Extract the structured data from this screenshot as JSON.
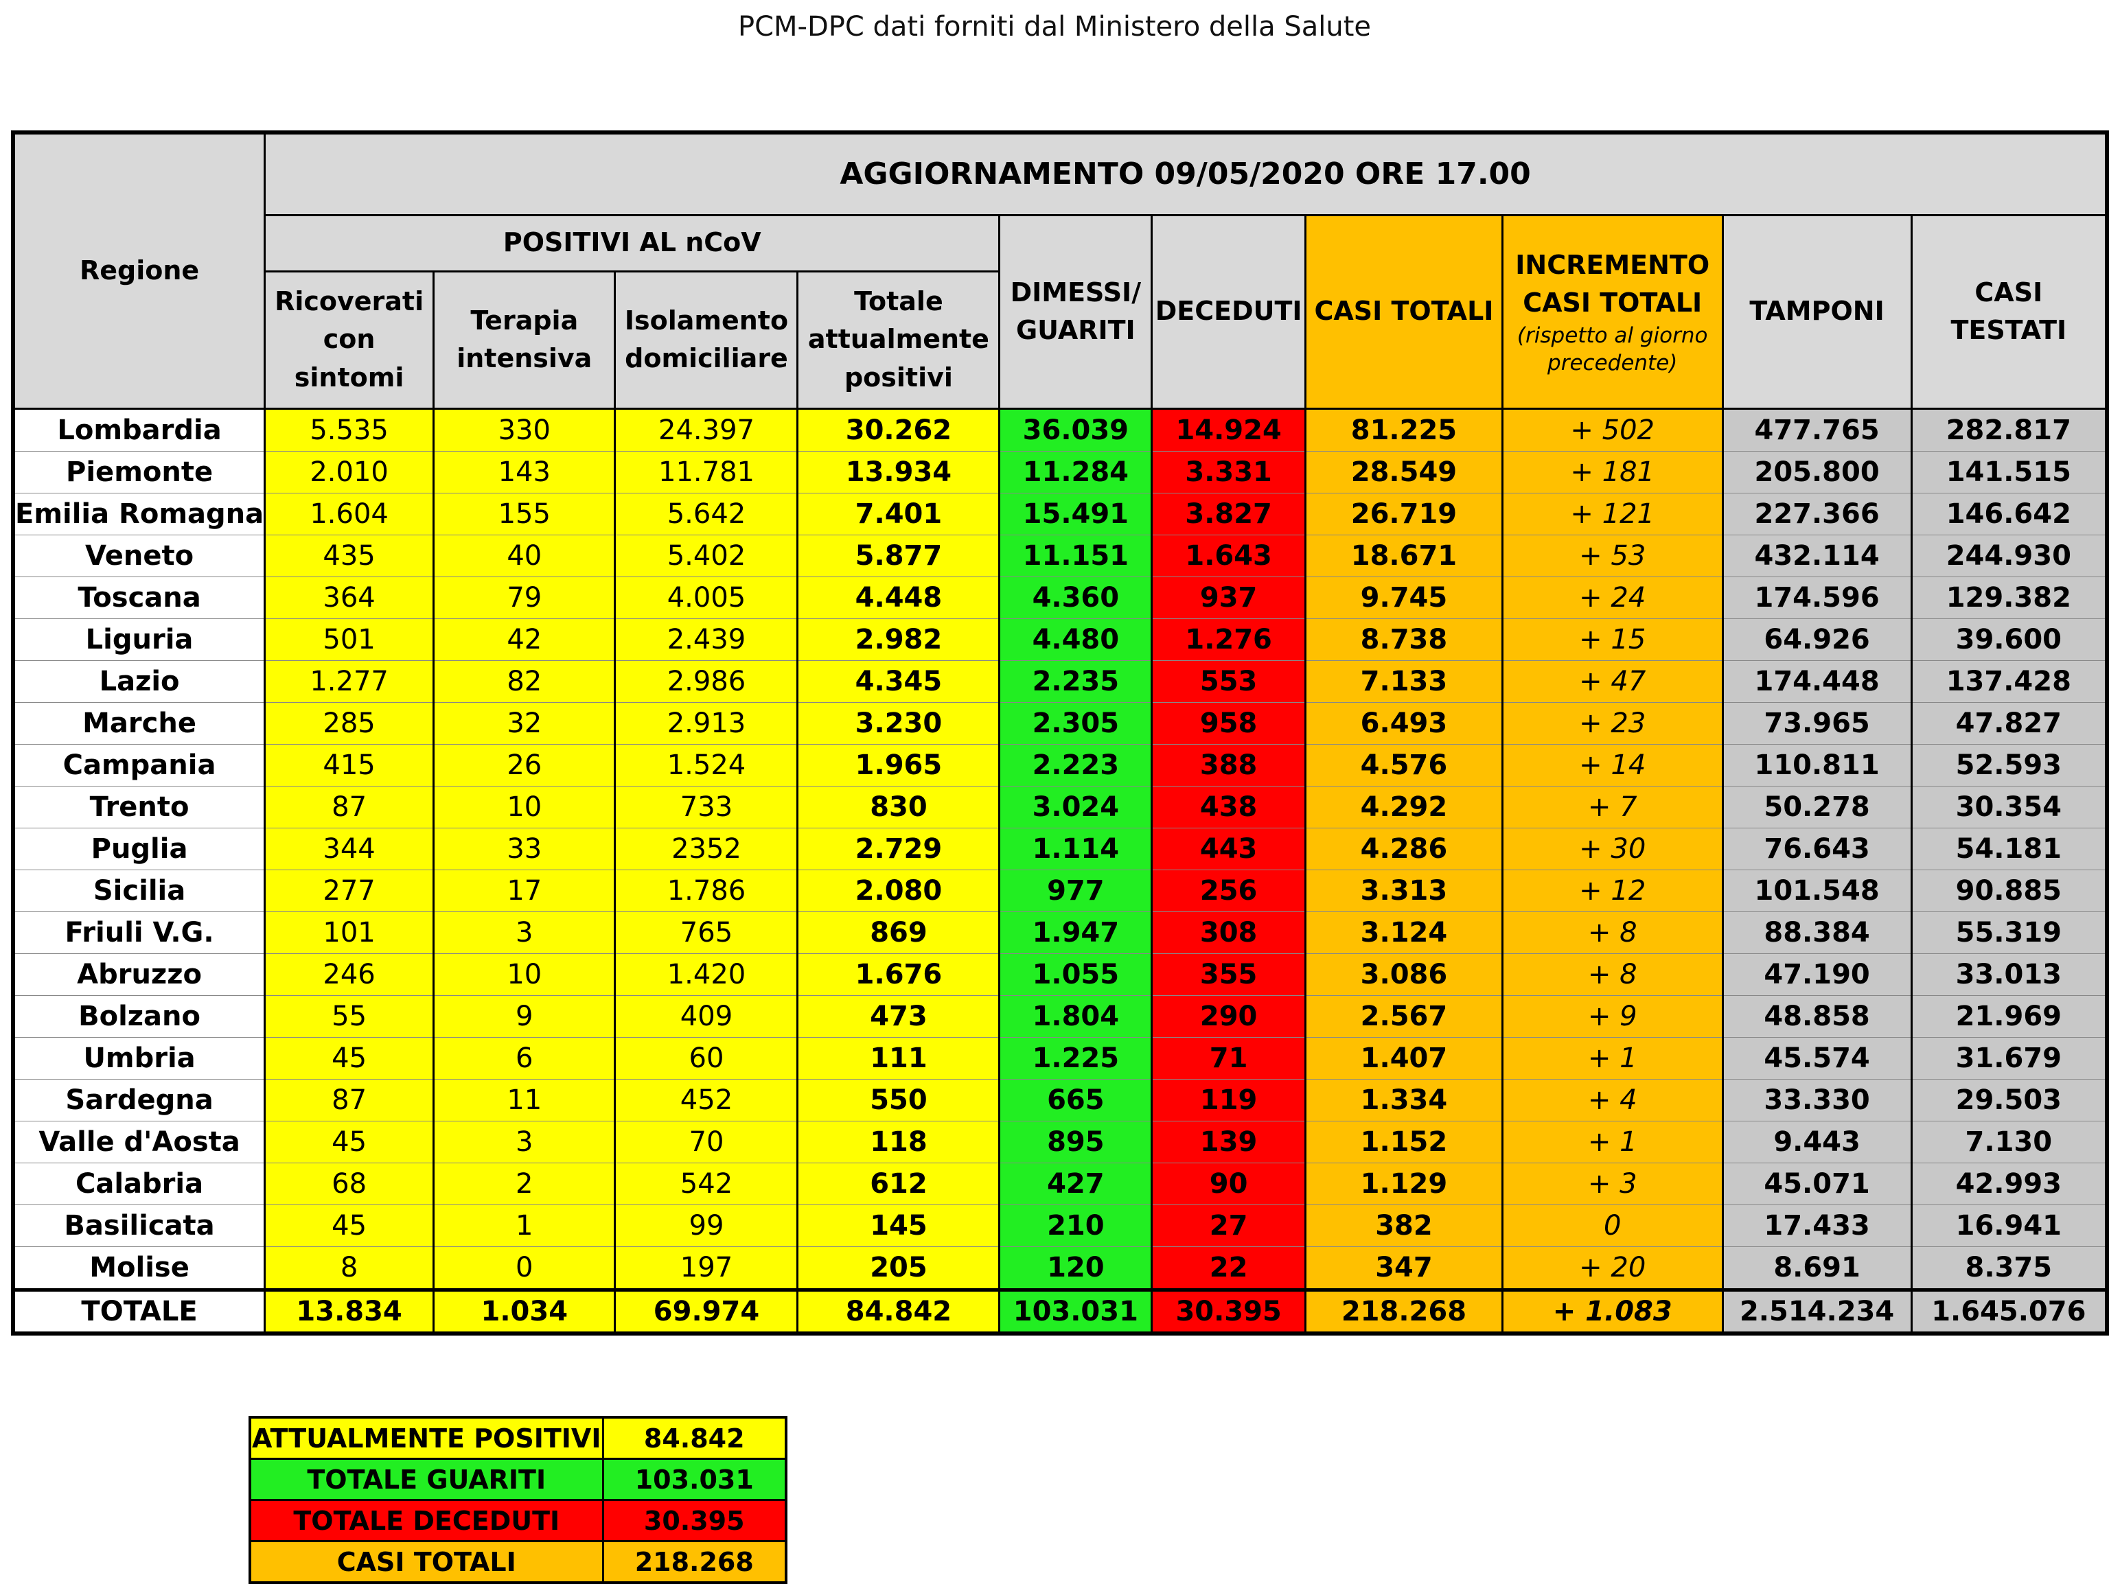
{
  "header": {
    "title": "PCM-DPC dati forniti dal Ministero della Salute"
  },
  "table": {
    "update": "AGGIORNAMENTO 09/05/2020 ORE 17.00",
    "region_header": "Regione",
    "positivi_header": "POSITIVI AL nCoV",
    "columns": [
      "Ricoverati con sintomi",
      "Terapia intensiva",
      "Isolamento domiciliare",
      "Totale attualmente positivi",
      "DIMESSI/ GUARITI",
      "DECEDUTI",
      "CASI TOTALI",
      "INCREMENTO CASI TOTALI",
      "TAMPONI",
      "CASI TESTATI"
    ],
    "incremento_note": "(rispetto al giorno precedente)",
    "rows": [
      [
        "Lombardia",
        "5.535",
        "330",
        "24.397",
        "30.262",
        "36.039",
        "14.924",
        "81.225",
        "+ 502",
        "477.765",
        "282.817"
      ],
      [
        "Piemonte",
        "2.010",
        "143",
        "11.781",
        "13.934",
        "11.284",
        "3.331",
        "28.549",
        "+ 181",
        "205.800",
        "141.515"
      ],
      [
        "Emilia Romagna",
        "1.604",
        "155",
        "5.642",
        "7.401",
        "15.491",
        "3.827",
        "26.719",
        "+ 121",
        "227.366",
        "146.642"
      ],
      [
        "Veneto",
        "435",
        "40",
        "5.402",
        "5.877",
        "11.151",
        "1.643",
        "18.671",
        "+ 53",
        "432.114",
        "244.930"
      ],
      [
        "Toscana",
        "364",
        "79",
        "4.005",
        "4.448",
        "4.360",
        "937",
        "9.745",
        "+ 24",
        "174.596",
        "129.382"
      ],
      [
        "Liguria",
        "501",
        "42",
        "2.439",
        "2.982",
        "4.480",
        "1.276",
        "8.738",
        "+ 15",
        "64.926",
        "39.600"
      ],
      [
        "Lazio",
        "1.277",
        "82",
        "2.986",
        "4.345",
        "2.235",
        "553",
        "7.133",
        "+ 47",
        "174.448",
        "137.428"
      ],
      [
        "Marche",
        "285",
        "32",
        "2.913",
        "3.230",
        "2.305",
        "958",
        "6.493",
        "+ 23",
        "73.965",
        "47.827"
      ],
      [
        "Campania",
        "415",
        "26",
        "1.524",
        "1.965",
        "2.223",
        "388",
        "4.576",
        "+ 14",
        "110.811",
        "52.593"
      ],
      [
        "Trento",
        "87",
        "10",
        "733",
        "830",
        "3.024",
        "438",
        "4.292",
        "+ 7",
        "50.278",
        "30.354"
      ],
      [
        "Puglia",
        "344",
        "33",
        "2352",
        "2.729",
        "1.114",
        "443",
        "4.286",
        "+ 30",
        "76.643",
        "54.181"
      ],
      [
        "Sicilia",
        "277",
        "17",
        "1.786",
        "2.080",
        "977",
        "256",
        "3.313",
        "+ 12",
        "101.548",
        "90.885"
      ],
      [
        "Friuli V.G.",
        "101",
        "3",
        "765",
        "869",
        "1.947",
        "308",
        "3.124",
        "+ 8",
        "88.384",
        "55.319"
      ],
      [
        "Abruzzo",
        "246",
        "10",
        "1.420",
        "1.676",
        "1.055",
        "355",
        "3.086",
        "+ 8",
        "47.190",
        "33.013"
      ],
      [
        "Bolzano",
        "55",
        "9",
        "409",
        "473",
        "1.804",
        "290",
        "2.567",
        "+ 9",
        "48.858",
        "21.969"
      ],
      [
        "Umbria",
        "45",
        "6",
        "60",
        "111",
        "1.225",
        "71",
        "1.407",
        "+ 1",
        "45.574",
        "31.679"
      ],
      [
        "Sardegna",
        "87",
        "11",
        "452",
        "550",
        "665",
        "119",
        "1.334",
        "+ 4",
        "33.330",
        "29.503"
      ],
      [
        "Valle d'Aosta",
        "45",
        "3",
        "70",
        "118",
        "895",
        "139",
        "1.152",
        "+ 1",
        "9.443",
        "7.130"
      ],
      [
        "Calabria",
        "68",
        "2",
        "542",
        "612",
        "427",
        "90",
        "1.129",
        "+ 3",
        "45.071",
        "42.993"
      ],
      [
        "Basilicata",
        "45",
        "1",
        "99",
        "145",
        "210",
        "27",
        "382",
        "0",
        "17.433",
        "16.941"
      ],
      [
        "Molise",
        "8",
        "0",
        "197",
        "205",
        "120",
        "22",
        "347",
        "+ 20",
        "8.691",
        "8.375"
      ]
    ],
    "total": [
      "TOTALE",
      "13.834",
      "1.034",
      "69.974",
      "84.842",
      "103.031",
      "30.395",
      "218.268",
      "+ 1.083",
      "2.514.234",
      "1.645.076"
    ]
  },
  "summary": {
    "rows": [
      [
        "ATTUALMENTE POSITIVI",
        "84.842"
      ],
      [
        "TOTALE GUARITI",
        "103.031"
      ],
      [
        "TOTALE DECEDUTI",
        "30.395"
      ],
      [
        "CASI TOTALI",
        "218.268"
      ]
    ]
  }
}
